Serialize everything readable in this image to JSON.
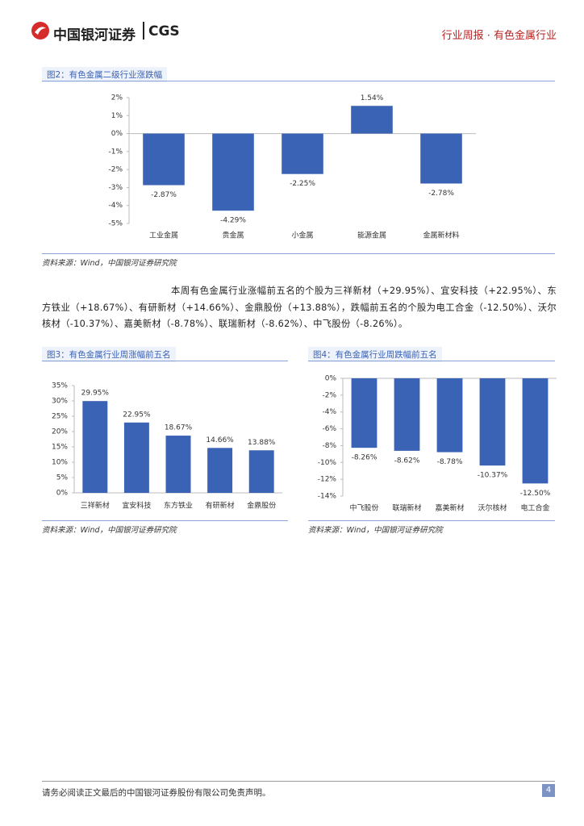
{
  "header": {
    "logo_cn": "中国银河证券",
    "logo_en": "CGS",
    "right": "行业周报 · 有色金属行业"
  },
  "figures": [
    {
      "title": "图2：有色金属二级行业涨跌幅",
      "source": "资料来源：Wind，中国银河证券研究院",
      "chart": {
        "type": "bar",
        "color": "#3b63b5",
        "categories": [
          "工业金属",
          "贵金属",
          "小金属",
          "能源金属",
          "金属新材料"
        ],
        "values": [
          -2.87,
          -4.29,
          -2.25,
          1.54,
          -2.78
        ],
        "value_labels": [
          "-2.87%",
          "-4.29%",
          "-2.25%",
          "1.54%",
          "-2.78%"
        ],
        "ylim": [
          -5,
          2
        ],
        "yticks": [
          {
            "value": -5,
            "label": "-5%"
          },
          {
            "value": -4,
            "label": "-4%"
          },
          {
            "value": -3,
            "label": "-3%"
          },
          {
            "value": -2,
            "label": "-2%"
          },
          {
            "value": -1,
            "label": "-1%"
          },
          {
            "value": 0,
            "label": "0%"
          },
          {
            "value": 1,
            "label": "1%"
          },
          {
            "value": 2,
            "label": "2%"
          }
        ]
      }
    },
    {
      "title": "图3：有色金属行业周涨幅前五名",
      "source": "资料来源：Wind，中国银河证券研究院",
      "chart": {
        "type": "bar",
        "color": "#3b63b5",
        "categories": [
          "三祥新材",
          "宜安科技",
          "东方铁业",
          "有研新材",
          "金鼎股份"
        ],
        "values": [
          29.95,
          22.95,
          18.67,
          14.66,
          13.88
        ],
        "value_labels": [
          "29.95%",
          "22.95%",
          "18.67%",
          "14.66%",
          "13.88%"
        ],
        "ylim": [
          0,
          35
        ],
        "yticks": [
          {
            "value": 0,
            "label": "0%"
          },
          {
            "value": 5,
            "label": "5%"
          },
          {
            "value": 10,
            "label": "10%"
          },
          {
            "value": 15,
            "label": "15%"
          },
          {
            "value": 20,
            "label": "20%"
          },
          {
            "value": 25,
            "label": "25%"
          },
          {
            "value": 30,
            "label": "30%"
          },
          {
            "value": 35,
            "label": "35%"
          }
        ]
      }
    },
    {
      "title": "图4：有色金属行业周跌幅前五名",
      "source": "资料来源：Wind，中国银河证券研究院",
      "chart": {
        "type": "bar",
        "color": "#3b63b5",
        "categories": [
          "中飞股份",
          "联瑞新材",
          "嘉美新材",
          "沃尔核材",
          "电工合金"
        ],
        "values": [
          -8.26,
          -8.62,
          -8.78,
          -10.37,
          -12.5
        ],
        "value_labels": [
          "-8.26%",
          "-8.62%",
          "-8.78%",
          "-10.37%",
          "-12.50%"
        ],
        "ylim": [
          -14,
          0
        ],
        "yticks": [
          {
            "value": -14,
            "label": "-14%"
          },
          {
            "value": -12,
            "label": "-12%"
          },
          {
            "value": -10,
            "label": "-10%"
          },
          {
            "value": -8,
            "label": "-8%"
          },
          {
            "value": -6,
            "label": "-6%"
          },
          {
            "value": -4,
            "label": "-4%"
          },
          {
            "value": -2,
            "label": "-2%"
          },
          {
            "value": 0,
            "label": "0%"
          }
        ]
      }
    }
  ],
  "paragraph": "本周有色金属行业涨幅前五名的个股为三祥新材（+29.95%）、宜安科技（+22.95%）、东方铁业（+18.67%）、有研新材（+14.66%）、金鼎股份（+13.88%），跌幅前五名的个股为电工合金（-12.50%）、沃尔核材（-10.37%）、嘉美新材（-8.78%）、联瑞新材（-8.62%）、中飞股份（-8.26%）。",
  "footer": {
    "disclaimer": "请务必阅读正文最后的中国银河证券股份有限公司免责声明。",
    "page": "4"
  }
}
